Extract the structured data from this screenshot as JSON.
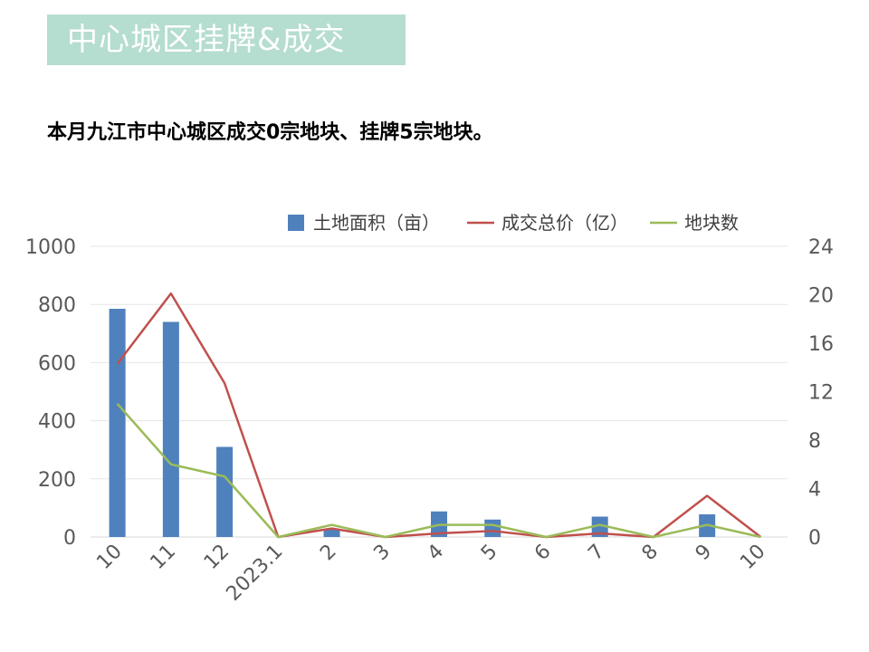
{
  "header": {
    "title": "中心城区挂牌&成交"
  },
  "summary": "本月九江市中心城区成交0宗地块、挂牌5宗地块。",
  "colors": {
    "bar": "#4f81bd",
    "price_line": "#c0504d",
    "count_line": "#9bbb59",
    "banner": "#b5ddd0"
  },
  "chart_data": {
    "type": "bar",
    "categories": [
      "10",
      "11",
      "12",
      "2023.1",
      "2",
      "3",
      "4",
      "5",
      "6",
      "7",
      "8",
      "9",
      "10"
    ],
    "series": [
      {
        "name": "土地面积（亩）",
        "type": "bar",
        "axis": "left",
        "values": [
          785,
          740,
          310,
          0,
          28,
          0,
          88,
          60,
          0,
          70,
          0,
          78,
          0
        ]
      },
      {
        "name": "成交总价（亿）",
        "type": "line",
        "axis": "right",
        "values": [
          14.3,
          20.1,
          12.7,
          0,
          0.7,
          0,
          0.3,
          0.5,
          0,
          0.3,
          0,
          3.4,
          0
        ]
      },
      {
        "name": "地块数",
        "type": "line",
        "axis": "right",
        "values": [
          11,
          6,
          5,
          0,
          1,
          0,
          1,
          1,
          0,
          1,
          0,
          1,
          0
        ]
      }
    ],
    "y_left": {
      "min": 0,
      "max": 1000,
      "ticks": [
        0,
        200,
        400,
        600,
        800,
        1000
      ]
    },
    "y_right": {
      "min": 0,
      "max": 24,
      "ticks": [
        0,
        4,
        8,
        12,
        16,
        20,
        24
      ]
    },
    "legend_position": "top-right",
    "grid": true
  }
}
